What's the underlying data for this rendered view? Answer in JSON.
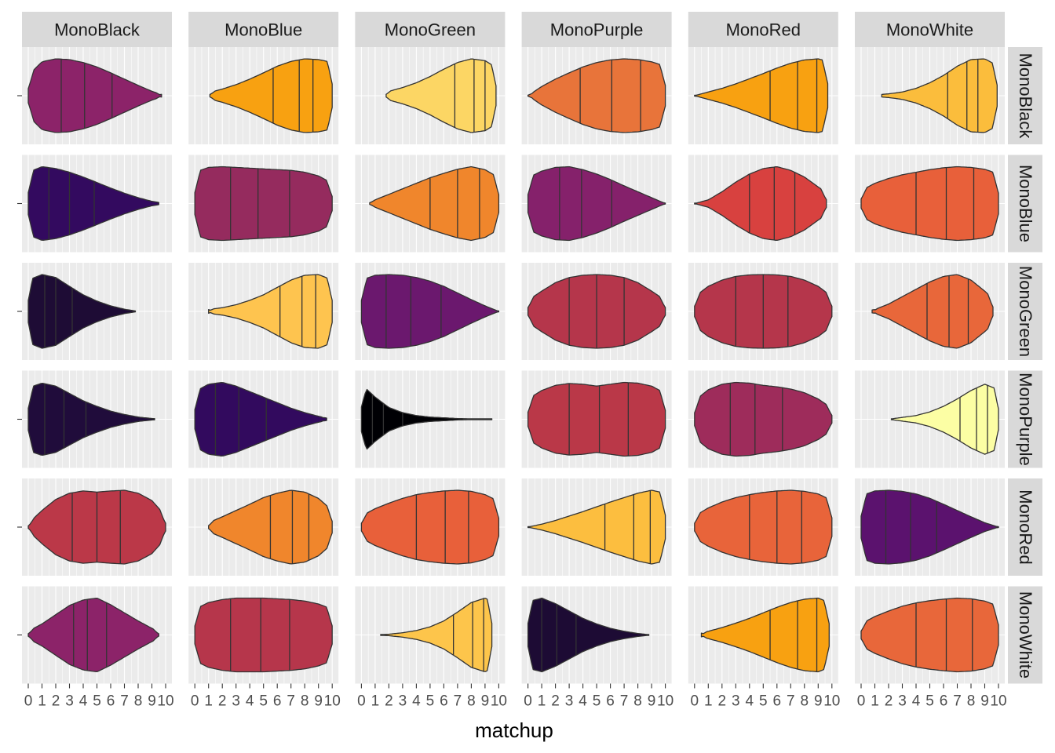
{
  "chart_data": {
    "type": "violin",
    "xlabel": "matchup",
    "ylabel": "",
    "title": "",
    "xlim": [
      0,
      10
    ],
    "x_ticks": [
      "0",
      "1",
      "2",
      "3",
      "4",
      "5",
      "6",
      "7",
      "8",
      "9",
      "10"
    ],
    "facet_cols": [
      "MonoBlack",
      "MonoBlue",
      "MonoGreen",
      "MonoPurple",
      "MonoRed",
      "MonoWhite"
    ],
    "facet_rows": [
      "MonoBlack",
      "MonoBlue",
      "MonoGreen",
      "MonoPurple",
      "MonoRed",
      "MonoWhite"
    ],
    "quantile_lines": [
      0.25,
      0.5,
      0.75
    ],
    "fill_palette": "inferno",
    "outline_color": "#333333",
    "panel_background": "#ebebeb",
    "strip_background": "#d9d9d9",
    "grid": true,
    "panels": [
      {
        "row": "MonoBlack",
        "col": "MonoBlack",
        "fill": "#8c2369",
        "range": [
          0,
          9.7
        ],
        "quartiles": [
          2.4,
          4.1,
          6.1
        ],
        "width": [
          0.55,
          0.92,
          1,
          0.98,
          0.9,
          0.78,
          0.62,
          0.45,
          0.28,
          0.12,
          0
        ]
      },
      {
        "row": "MonoBlack",
        "col": "MonoBlue",
        "fill": "#f8a111",
        "range": [
          1.1,
          10
        ],
        "quartiles": [
          5.7,
          7.6,
          8.6
        ],
        "width": [
          0,
          0.08,
          0.18,
          0.3,
          0.45,
          0.62,
          0.8,
          0.93,
          1,
          0.98,
          0.9
        ]
      },
      {
        "row": "MonoBlack",
        "col": "MonoGreen",
        "fill": "#fcd664",
        "range": [
          1.8,
          9.8
        ],
        "quartiles": [
          6.8,
          8.2,
          9.0
        ],
        "width": [
          0,
          0.05,
          0.12,
          0.22,
          0.35,
          0.52,
          0.72,
          0.9,
          1,
          0.95,
          0.72
        ]
      },
      {
        "row": "MonoBlack",
        "col": "MonoPurple",
        "fill": "#e8743a",
        "range": [
          0,
          10
        ],
        "quartiles": [
          3.8,
          6.1,
          8.2
        ],
        "width": [
          0,
          0.25,
          0.45,
          0.62,
          0.78,
          0.9,
          0.97,
          1,
          0.98,
          0.92,
          0.8
        ]
      },
      {
        "row": "MonoBlack",
        "col": "MonoRed",
        "fill": "#f8a111",
        "range": [
          0,
          9.7
        ],
        "quartiles": [
          5.5,
          7.5,
          8.9
        ],
        "width": [
          0,
          0.1,
          0.2,
          0.32,
          0.46,
          0.6,
          0.75,
          0.88,
          0.97,
          1,
          0.9
        ]
      },
      {
        "row": "MonoBlack",
        "col": "MonoWhite",
        "fill": "#fbbd3c",
        "range": [
          1.5,
          9.9
        ],
        "quartiles": [
          6.3,
          7.7,
          8.5
        ],
        "width": [
          0,
          0.02,
          0.05,
          0.1,
          0.2,
          0.35,
          0.55,
          0.8,
          0.98,
          1,
          0.8
        ]
      },
      {
        "row": "MonoBlue",
        "col": "MonoBlack",
        "fill": "#330a5f",
        "range": [
          0,
          9.5
        ],
        "quartiles": [
          1.5,
          3.0,
          4.8
        ],
        "width": [
          0.85,
          1,
          0.95,
          0.85,
          0.72,
          0.57,
          0.42,
          0.28,
          0.16,
          0.06,
          0
        ]
      },
      {
        "row": "MonoBlue",
        "col": "MonoBlue",
        "fill": "#952b5e",
        "range": [
          0,
          10
        ],
        "quartiles": [
          2.6,
          4.6,
          6.9
        ],
        "width": [
          0.85,
          0.98,
          1,
          0.98,
          0.96,
          0.94,
          0.92,
          0.9,
          0.85,
          0.75,
          0.55
        ]
      },
      {
        "row": "MonoBlue",
        "col": "MonoGreen",
        "fill": "#f0862c",
        "range": [
          0.6,
          10
        ],
        "quartiles": [
          5.0,
          7.0,
          8.6
        ],
        "width": [
          0,
          0.1,
          0.25,
          0.4,
          0.55,
          0.7,
          0.82,
          0.93,
          1,
          0.92,
          0.7
        ]
      },
      {
        "row": "MonoBlue",
        "col": "MonoPurple",
        "fill": "#85216b",
        "range": [
          0,
          10
        ],
        "quartiles": [
          2.3,
          3.9,
          6.1
        ],
        "width": [
          0.7,
          0.88,
          0.98,
          1,
          0.92,
          0.8,
          0.65,
          0.48,
          0.32,
          0.16,
          0
        ]
      },
      {
        "row": "MonoBlue",
        "col": "MonoRed",
        "fill": "#d8413f",
        "range": [
          0,
          9.6
        ],
        "quartiles": [
          4.0,
          5.8,
          7.3
        ],
        "width": [
          0,
          0.1,
          0.32,
          0.58,
          0.8,
          0.95,
          1,
          0.9,
          0.72,
          0.45,
          0.2
        ]
      },
      {
        "row": "MonoBlue",
        "col": "MonoWhite",
        "fill": "#e8603a",
        "range": [
          0,
          10
        ],
        "quartiles": [
          4.0,
          6.2,
          8.2
        ],
        "width": [
          0.35,
          0.55,
          0.68,
          0.78,
          0.85,
          0.92,
          0.97,
          1,
          0.98,
          0.93,
          0.8
        ]
      },
      {
        "row": "MonoGreen",
        "col": "MonoBlack",
        "fill": "#1e0c35",
        "range": [
          0,
          7.8
        ],
        "quartiles": [
          1.2,
          2.0,
          3.2
        ],
        "width": [
          0.85,
          1,
          0.92,
          0.68,
          0.45,
          0.28,
          0.15,
          0.06,
          0,
          0,
          0
        ]
      },
      {
        "row": "MonoGreen",
        "col": "MonoBlue",
        "fill": "#fec44f",
        "range": [
          1.0,
          10
        ],
        "quartiles": [
          6.2,
          7.8,
          8.8
        ],
        "width": [
          0,
          0.05,
          0.1,
          0.18,
          0.3,
          0.45,
          0.65,
          0.85,
          0.98,
          1,
          0.85
        ]
      },
      {
        "row": "MonoGreen",
        "col": "MonoGreen",
        "fill": "#6b186e",
        "range": [
          0,
          10
        ],
        "quartiles": [
          1.8,
          3.6,
          5.8
        ],
        "width": [
          0.85,
          0.98,
          1,
          0.98,
          0.92,
          0.82,
          0.68,
          0.5,
          0.32,
          0.15,
          0
        ]
      },
      {
        "row": "MonoGreen",
        "col": "MonoPurple",
        "fill": "#b5364b",
        "range": [
          0,
          10
        ],
        "quartiles": [
          3.0,
          5.0,
          7.0
        ],
        "width": [
          0.3,
          0.55,
          0.78,
          0.92,
          0.98,
          1,
          0.98,
          0.92,
          0.78,
          0.55,
          0.3
        ]
      },
      {
        "row": "MonoGreen",
        "col": "MonoRed",
        "fill": "#b5364b",
        "range": [
          0,
          10
        ],
        "quartiles": [
          3.0,
          5.0,
          6.8
        ],
        "width": [
          0.4,
          0.68,
          0.85,
          0.95,
          0.99,
          1,
          0.99,
          0.95,
          0.85,
          0.68,
          0.4
        ]
      },
      {
        "row": "MonoGreen",
        "col": "MonoWhite",
        "fill": "#e8673a",
        "range": [
          0.8,
          9.6
        ],
        "quartiles": [
          4.8,
          6.4,
          7.8
        ],
        "width": [
          0,
          0.05,
          0.2,
          0.4,
          0.6,
          0.8,
          0.95,
          1,
          0.85,
          0.55,
          0.2
        ]
      },
      {
        "row": "MonoPurple",
        "col": "MonoBlack",
        "fill": "#200c3b",
        "range": [
          0,
          9.2
        ],
        "quartiles": [
          1.2,
          2.6,
          4.2
        ],
        "width": [
          0.85,
          0.98,
          0.9,
          0.7,
          0.5,
          0.35,
          0.22,
          0.13,
          0.06,
          0.02,
          0
        ]
      },
      {
        "row": "MonoPurple",
        "col": "MonoBlue",
        "fill": "#320a5e",
        "range": [
          0,
          9.6
        ],
        "quartiles": [
          1.5,
          3.2,
          5.2
        ],
        "width": [
          0.75,
          0.95,
          1,
          0.9,
          0.75,
          0.6,
          0.45,
          0.3,
          0.18,
          0.08,
          0
        ]
      },
      {
        "row": "MonoPurple",
        "col": "MonoGreen",
        "fill": "#000004",
        "range": [
          0,
          9.5
        ],
        "quartiles": [
          0.8,
          1.6,
          3.0
        ],
        "width": [
          0.95,
          0.6,
          0.32,
          0.18,
          0.1,
          0.06,
          0.04,
          0.02,
          0.01,
          0,
          0
        ]
      },
      {
        "row": "MonoPurple",
        "col": "MonoPurple",
        "fill": "#ba3848",
        "range": [
          0,
          10
        ],
        "quartiles": [
          3.0,
          5.2,
          7.3
        ],
        "width": [
          0.55,
          0.78,
          0.92,
          0.97,
          0.95,
          0.9,
          0.95,
          1,
          0.98,
          0.9,
          0.7
        ]
      },
      {
        "row": "MonoPurple",
        "col": "MonoRed",
        "fill": "#9e2c5b",
        "range": [
          0,
          10
        ],
        "quartiles": [
          2.6,
          4.4,
          6.4
        ],
        "width": [
          0.5,
          0.8,
          0.95,
          1,
          0.98,
          0.92,
          0.88,
          0.82,
          0.72,
          0.55,
          0.3
        ]
      },
      {
        "row": "MonoPurple",
        "col": "MonoWhite",
        "fill": "#fcfea4",
        "range": [
          2.2,
          10
        ],
        "quartiles": [
          7.2,
          8.4,
          9.2
        ],
        "width": [
          0,
          0,
          0,
          0.05,
          0.1,
          0.2,
          0.35,
          0.55,
          0.78,
          0.95,
          0.8
        ]
      },
      {
        "row": "MonoRed",
        "col": "MonoBlack",
        "fill": "#bb3848",
        "range": [
          0,
          10
        ],
        "quartiles": [
          3.2,
          5.0,
          6.7
        ],
        "width": [
          0.1,
          0.45,
          0.75,
          0.92,
          0.98,
          0.95,
          0.98,
          1,
          0.92,
          0.72,
          0.3
        ]
      },
      {
        "row": "MonoRed",
        "col": "MonoBlue",
        "fill": "#f0862c",
        "range": [
          1.0,
          10
        ],
        "quartiles": [
          5.5,
          7.1,
          8.3
        ],
        "width": [
          0,
          0.12,
          0.28,
          0.45,
          0.62,
          0.8,
          0.92,
          1,
          0.95,
          0.78,
          0.45
        ]
      },
      {
        "row": "MonoRed",
        "col": "MonoGreen",
        "fill": "#e8603a",
        "range": [
          0,
          10
        ],
        "quartiles": [
          4.0,
          6.1,
          7.8
        ],
        "width": [
          0.3,
          0.5,
          0.65,
          0.78,
          0.88,
          0.94,
          0.98,
          1,
          0.97,
          0.88,
          0.7
        ]
      },
      {
        "row": "MonoRed",
        "col": "MonoPurple",
        "fill": "#fcbe3f",
        "range": [
          0,
          10
        ],
        "quartiles": [
          5.6,
          7.7,
          8.9
        ],
        "width": [
          0,
          0.08,
          0.18,
          0.3,
          0.42,
          0.55,
          0.68,
          0.8,
          0.92,
          1,
          0.92
        ]
      },
      {
        "row": "MonoRed",
        "col": "MonoRed",
        "fill": "#e8643a",
        "range": [
          0,
          10
        ],
        "quartiles": [
          4.0,
          6.0,
          7.8
        ],
        "width": [
          0.3,
          0.52,
          0.68,
          0.8,
          0.88,
          0.94,
          0.98,
          1,
          0.97,
          0.9,
          0.72
        ]
      },
      {
        "row": "MonoRed",
        "col": "MonoWhite",
        "fill": "#5b126e",
        "range": [
          0,
          10
        ],
        "quartiles": [
          1.8,
          3.6,
          5.5
        ],
        "width": [
          0.85,
          0.98,
          1,
          0.97,
          0.9,
          0.78,
          0.62,
          0.45,
          0.28,
          0.12,
          0
        ]
      },
      {
        "row": "MonoWhite",
        "col": "MonoBlack",
        "fill": "#8c2369",
        "range": [
          0,
          9.5
        ],
        "quartiles": [
          3.3,
          4.3,
          5.7
        ],
        "width": [
          0.1,
          0.3,
          0.55,
          0.8,
          0.95,
          1,
          0.82,
          0.6,
          0.38,
          0.18,
          0
        ]
      },
      {
        "row": "MonoWhite",
        "col": "MonoBlue",
        "fill": "#b6364b",
        "range": [
          0,
          10
        ],
        "quartiles": [
          2.6,
          4.8,
          6.9
        ],
        "width": [
          0.7,
          0.88,
          0.96,
          1,
          1,
          1,
          0.98,
          0.96,
          0.92,
          0.84,
          0.7
        ]
      },
      {
        "row": "MonoWhite",
        "col": "MonoGreen",
        "fill": "#fdc54b",
        "range": [
          1.4,
          9.5
        ],
        "quartiles": [
          6.7,
          8.1,
          8.9
        ],
        "width": [
          0,
          0,
          0.02,
          0.06,
          0.12,
          0.22,
          0.38,
          0.62,
          0.88,
          1,
          0.8
        ]
      },
      {
        "row": "MonoWhite",
        "col": "MonoPurple",
        "fill": "#1d0b34",
        "range": [
          0,
          8.8
        ],
        "quartiles": [
          1.0,
          2.1,
          3.5
        ],
        "width": [
          0.9,
          1,
          0.85,
          0.65,
          0.45,
          0.3,
          0.18,
          0.1,
          0.04,
          0,
          0
        ]
      },
      {
        "row": "MonoWhite",
        "col": "MonoRed",
        "fill": "#f8a111",
        "range": [
          0.5,
          9.8
        ],
        "quartiles": [
          5.5,
          7.5,
          8.9
        ],
        "width": [
          0,
          0.1,
          0.2,
          0.32,
          0.45,
          0.6,
          0.75,
          0.88,
          0.97,
          1,
          0.85
        ]
      },
      {
        "row": "MonoWhite",
        "col": "MonoWhite",
        "fill": "#e8673a",
        "range": [
          0,
          10
        ],
        "quartiles": [
          4.0,
          6.2,
          8.1
        ],
        "width": [
          0.3,
          0.5,
          0.65,
          0.78,
          0.87,
          0.93,
          0.97,
          1,
          0.98,
          0.92,
          0.78
        ]
      }
    ]
  }
}
